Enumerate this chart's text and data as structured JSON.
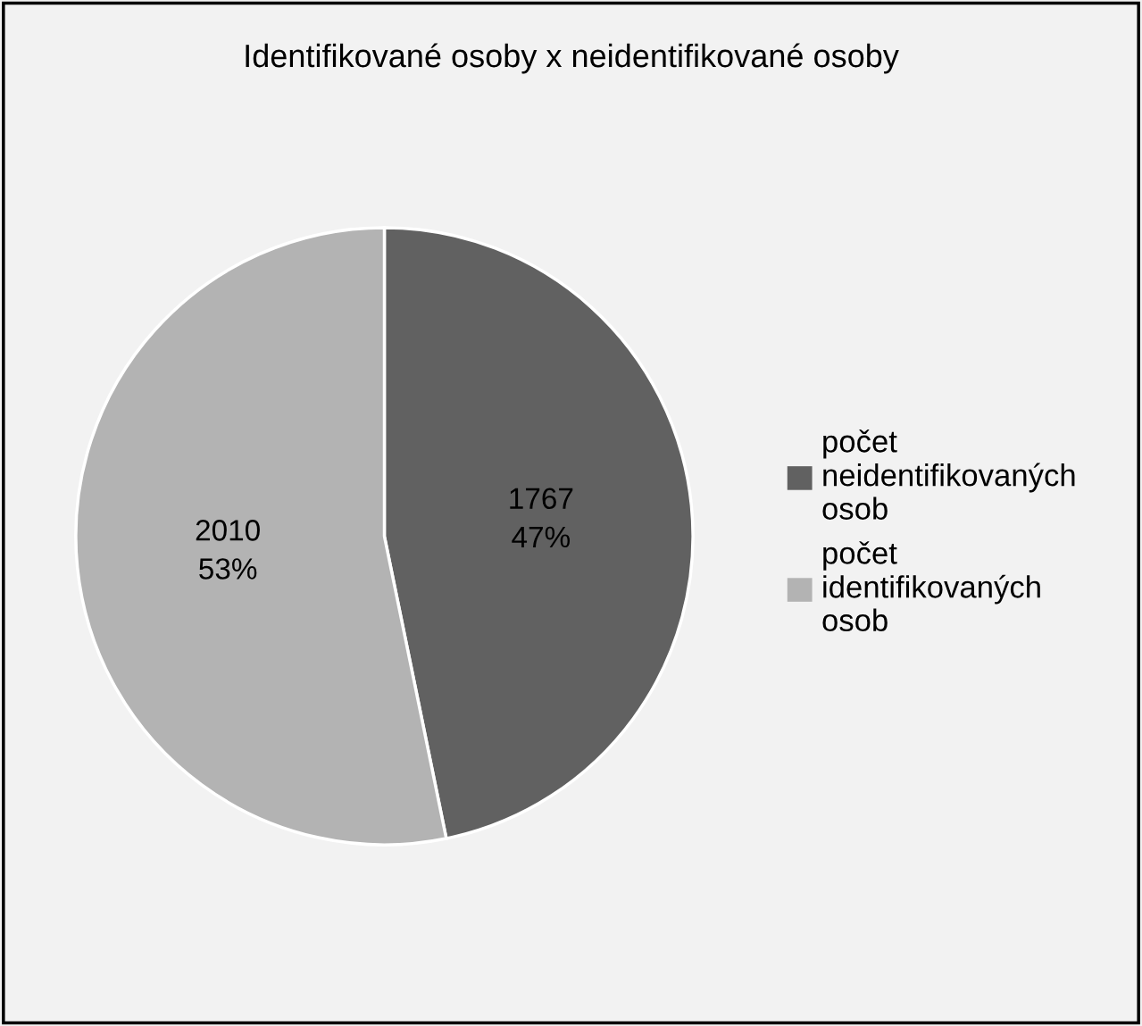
{
  "chart_data": {
    "type": "pie",
    "title": "Identifikované osoby x neidentifikované osoby",
    "categories": [
      "počet neidentifikovaných osob",
      "počet identifikovaných osob"
    ],
    "values": [
      1767,
      2010
    ],
    "value_labels": [
      "1767\n47%",
      "2010\n53%"
    ],
    "colors": [
      "#616161",
      "#b3b3b3"
    ],
    "legend": "right"
  }
}
